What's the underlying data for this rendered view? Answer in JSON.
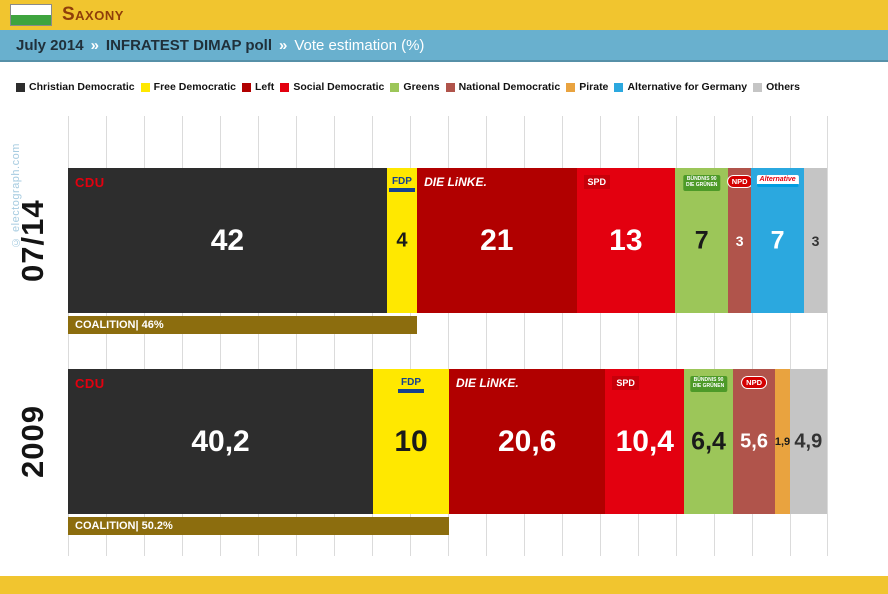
{
  "header": {
    "region": "Saxony"
  },
  "flag": {
    "top": "#FFFFFF",
    "bottom": "#3EA43E"
  },
  "subheader": {
    "date": "July 2014",
    "sep": "»",
    "source": "INFRATEST DIMAP poll",
    "title": "Vote estimation (%)"
  },
  "watermark": "© electograph.com",
  "colors": {
    "header_bar": "#F1C52F",
    "region_text": "#8F3E0A",
    "subheader_bar": "#69B0CE",
    "subheader_text_dark": "#20303A",
    "subheader_text_light": "#FFFFFF",
    "coalition_bar": "#8C6D0E",
    "grid": "#DBDBDB"
  },
  "chart_data": {
    "type": "bar",
    "variant": "horizontal-stacked",
    "unit": "%",
    "xlim": [
      0,
      100
    ],
    "gridline_step": 5,
    "legend_position": "top",
    "legend_order": [
      "CDU",
      "FDP",
      "LINKE",
      "SPD",
      "GRUENE",
      "NPD",
      "PIRATE",
      "AFD",
      "OTHERS"
    ],
    "parties": {
      "CDU": {
        "name": "Christian Democratic",
        "color": "#2D2D2D",
        "value_color": "#FFFFFF",
        "logo_text": "CDU"
      },
      "FDP": {
        "name": "Free Democratic",
        "color": "#FFE800",
        "value_color": "#1A1A1A",
        "logo_text": "FDP"
      },
      "LINKE": {
        "name": "Left",
        "color": "#B10000",
        "value_color": "#FFFFFF",
        "logo_text": "DIE LiNKE."
      },
      "SPD": {
        "name": "Social Democratic",
        "color": "#E3000F",
        "value_color": "#FFFFFF",
        "logo_text": "SPD"
      },
      "GRUENE": {
        "name": "Greens",
        "color": "#9CC659",
        "value_color": "#1A1A1A",
        "logo_text_1": "BÜNDNIS 90",
        "logo_text_2": "DIE GRÜNEN"
      },
      "NPD": {
        "name": "National Democratic",
        "color": "#B0544B",
        "value_color": "#FFFFFF",
        "logo_text": "NPD"
      },
      "PIRATE": {
        "name": "Pirate",
        "color": "#E9A33F",
        "value_color": "#1A1A1A"
      },
      "AFD": {
        "name": "Alternative for Germany",
        "color": "#2BA8DF",
        "value_color": "#FFFFFF",
        "logo_text": "Alternative"
      },
      "OTHERS": {
        "name": "Others",
        "color": "#C5C5C5",
        "value_color": "#333333"
      }
    },
    "rows": [
      {
        "label": "07/14",
        "coalition": {
          "label": "COALITION",
          "value": 46,
          "value_label": "46%"
        },
        "segments": [
          {
            "party": "CDU",
            "value": 42,
            "label": "42"
          },
          {
            "party": "FDP",
            "value": 4,
            "label": "4"
          },
          {
            "party": "LINKE",
            "value": 21,
            "label": "21"
          },
          {
            "party": "SPD",
            "value": 13,
            "label": "13"
          },
          {
            "party": "GRUENE",
            "value": 7,
            "label": "7"
          },
          {
            "party": "NPD",
            "value": 3,
            "label": "3"
          },
          {
            "party": "AFD",
            "value": 7,
            "label": "7"
          },
          {
            "party": "OTHERS",
            "value": 3,
            "label": "3"
          }
        ]
      },
      {
        "label": "2009",
        "coalition": {
          "label": "COALITION",
          "value": 50.2,
          "value_label": "50.2%"
        },
        "segments": [
          {
            "party": "CDU",
            "value": 40.2,
            "label": "40,2"
          },
          {
            "party": "FDP",
            "value": 10,
            "label": "10"
          },
          {
            "party": "LINKE",
            "value": 20.6,
            "label": "20,6"
          },
          {
            "party": "SPD",
            "value": 10.4,
            "label": "10,4"
          },
          {
            "party": "GRUENE",
            "value": 6.4,
            "label": "6,4"
          },
          {
            "party": "NPD",
            "value": 5.6,
            "label": "5,6"
          },
          {
            "party": "PIRATE",
            "value": 1.9,
            "label": "1,9"
          },
          {
            "party": "OTHERS",
            "value": 4.9,
            "label": "4,9"
          }
        ]
      }
    ]
  }
}
